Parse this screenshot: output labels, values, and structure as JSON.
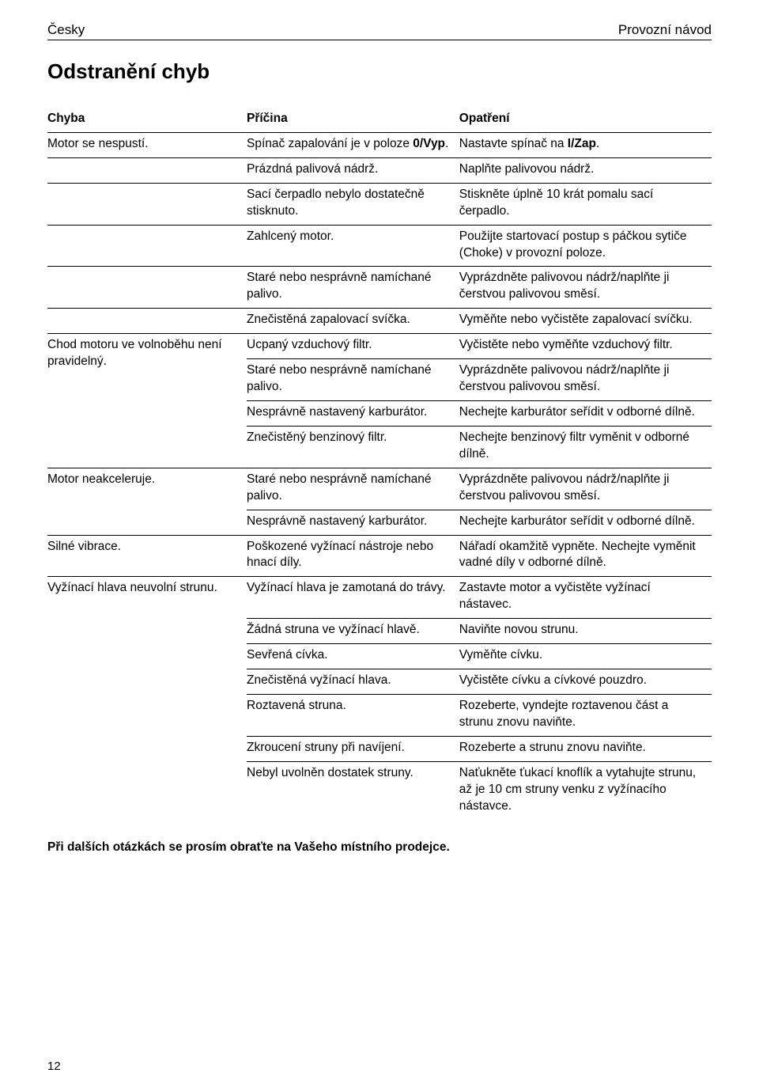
{
  "header": {
    "left": "Česky",
    "right": "Provozní návod"
  },
  "section_title": "Odstranění chyb",
  "columns": {
    "c1": "Chyba",
    "c2": "Příčina",
    "c3": "Opatření"
  },
  "rows": [
    {
      "fault": "Motor se nespustí.",
      "cause_pre": "Spínač zapalování je v poloze ",
      "cause_strong": "0/Vyp",
      "cause_post": ".",
      "remedy_pre": "Nastavte spínač na ",
      "remedy_strong": "I/Zap",
      "remedy_post": "."
    },
    {
      "fault": "",
      "cause": "Prázdná palivová nádrž.",
      "remedy": "Naplňte palivovou nádrž."
    },
    {
      "fault": "",
      "cause": "Sací čerpadlo nebylo dostatečně stisknuto.",
      "remedy": "Stiskněte úplně 10 krát pomalu sací čerpadlo."
    },
    {
      "fault": "",
      "cause": "Zahlcený motor.",
      "remedy": "Použijte startovací postup s páčkou sytiče (Choke) v provozní poloze."
    },
    {
      "fault": "",
      "cause": "Staré nebo nesprávně namíchané palivo.",
      "remedy": "Vyprázdněte palivovou nádrž/naplňte ji čerstvou palivovou směsí."
    },
    {
      "fault": "",
      "cause": "Znečistěná zapalovací svíčka.",
      "remedy": "Vyměňte nebo vyčistěte zapalovací svíčku."
    },
    {
      "fault": "Chod motoru ve volnoběhu není pravidelný.",
      "fault_rowspan": 4,
      "cause": "Ucpaný vzduchový filtr.",
      "remedy": "Vyčistěte nebo vyměňte vzduchový filtr."
    },
    {
      "cause": "Staré nebo nesprávně namíchané palivo.",
      "remedy": "Vyprázdněte palivovou nádrž/naplňte ji čerstvou palivovou směsí."
    },
    {
      "cause": "Nesprávně nastavený karburátor.",
      "remedy": "Nechejte karburátor seřídit v odborné dílně."
    },
    {
      "cause": "Znečistěný benzinový filtr.",
      "remedy": "Nechejte benzinový filtr vyměnit v odborné dílně."
    },
    {
      "fault": "Motor neakceleruje.",
      "fault_rowspan": 2,
      "cause": "Staré nebo nesprávně namíchané palivo.",
      "remedy": "Vyprázdněte palivovou nádrž/naplňte ji čerstvou palivovou směsí."
    },
    {
      "cause": "Nesprávně nastavený karburátor.",
      "remedy": "Nechejte karburátor seřídit v odborné dílně."
    },
    {
      "fault": "Silné vibrace.",
      "cause": "Poškozené vyžínací nástroje nebo hnací díly.",
      "remedy": "Nářadí okamžitě vypněte. Nechejte vyměnit vadné díly v odborné dílně."
    },
    {
      "fault": "Vyžínací hlava neuvolní strunu.",
      "fault_rowspan": 7,
      "cause": "Vyžínací hlava je zamotaná do trávy.",
      "remedy": "Zastavte motor a vyčistěte vyžínací nástavec."
    },
    {
      "cause": "Žádná struna ve vyžínací hlavě.",
      "remedy": "Naviňte novou strunu."
    },
    {
      "cause": "Sevřená cívka.",
      "remedy": "Vyměňte cívku."
    },
    {
      "cause": "Znečistěná vyžínací hlava.",
      "remedy": "Vyčistěte cívku a cívkové pouzdro."
    },
    {
      "cause": "Roztavená struna.",
      "remedy": "Rozeberte, vyndejte roztavenou část a strunu znovu naviňte."
    },
    {
      "cause": "Zkroucení struny při navíjení.",
      "remedy": "Rozeberte a strunu znovu naviňte."
    },
    {
      "cause": "Nebyl uvolněn dostatek struny.",
      "remedy": "Naťukněte ťukací knoflík a vytahujte strunu, až je 10 cm struny venku z vyžínacího nástavce."
    }
  ],
  "footer_note": "Při dalších otázkách se prosím obraťte na Vašeho místního prodejce.",
  "page_number": "12"
}
